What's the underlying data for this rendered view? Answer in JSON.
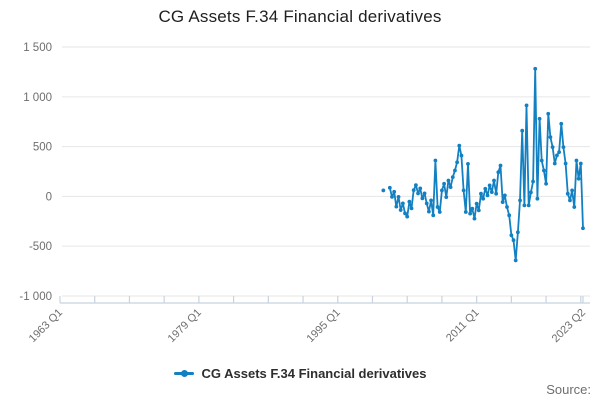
{
  "title": "CG Assets F.34 Financial derivatives",
  "legend": {
    "label": "CG Assets F.34 Financial derivatives"
  },
  "source_label": "Source:",
  "chart_data": {
    "type": "line",
    "title": "CG Assets F.34 Financial derivatives",
    "series_name": "CG Assets F.34 Financial derivatives",
    "series_color": "#1380c2",
    "grid_color": "#e6e6e6",
    "axis_color": "#c8d3df",
    "label_color": "#6e6e6e",
    "xlabel": "",
    "ylabel": "",
    "x_axis": {
      "start_quarter": "1963 Q1",
      "end_quarter": "2023 Q2",
      "labels": [
        "1963 Q1",
        "1979 Q1",
        "1995 Q1",
        "2011 Q1",
        "2023 Q2"
      ],
      "label_quarter_indices": [
        0,
        64,
        128,
        192,
        241
      ],
      "minor_tick_step_quarters": 16
    },
    "y_axis": {
      "ticks": [
        -1000,
        -500,
        0,
        500,
        1000,
        1500
      ],
      "tick_labels": [
        "-1 000",
        "-500",
        "0",
        "500",
        "1 000",
        "1 500"
      ],
      "ylim": [
        -1000,
        1500
      ],
      "grid": true
    },
    "points": [
      {
        "q": "2000 Q2",
        "v": 60
      },
      {
        "q": "2001 Q1",
        "v": 87
      },
      {
        "q": "2001 Q2",
        "v": -5
      },
      {
        "q": "2001 Q3",
        "v": 47
      },
      {
        "q": "2001 Q4",
        "v": -103
      },
      {
        "q": "2002 Q1",
        "v": -5
      },
      {
        "q": "2002 Q2",
        "v": -137
      },
      {
        "q": "2002 Q3",
        "v": -70
      },
      {
        "q": "2002 Q4",
        "v": -170
      },
      {
        "q": "2003 Q1",
        "v": -203
      },
      {
        "q": "2003 Q2",
        "v": -53
      },
      {
        "q": "2003 Q3",
        "v": -120
      },
      {
        "q": "2003 Q4",
        "v": 63
      },
      {
        "q": "2004 Q1",
        "v": 113
      },
      {
        "q": "2004 Q2",
        "v": 30
      },
      {
        "q": "2004 Q3",
        "v": 80
      },
      {
        "q": "2004 Q4",
        "v": -20
      },
      {
        "q": "2005 Q1",
        "v": 30
      },
      {
        "q": "2005 Q2",
        "v": -70
      },
      {
        "q": "2005 Q3",
        "v": -153
      },
      {
        "q": "2005 Q4",
        "v": -40
      },
      {
        "q": "2006 Q1",
        "v": -190
      },
      {
        "q": "2006 Q2",
        "v": 360
      },
      {
        "q": "2006 Q3",
        "v": -107
      },
      {
        "q": "2006 Q4",
        "v": -157
      },
      {
        "q": "2007 Q1",
        "v": 60
      },
      {
        "q": "2007 Q2",
        "v": 127
      },
      {
        "q": "2007 Q3",
        "v": -7
      },
      {
        "q": "2007 Q4",
        "v": 160
      },
      {
        "q": "2008 Q1",
        "v": 93
      },
      {
        "q": "2008 Q2",
        "v": 193
      },
      {
        "q": "2008 Q3",
        "v": 260
      },
      {
        "q": "2008 Q4",
        "v": 343
      },
      {
        "q": "2009 Q1",
        "v": 510
      },
      {
        "q": "2009 Q2",
        "v": 410
      },
      {
        "q": "2009 Q3",
        "v": 60
      },
      {
        "q": "2009 Q4",
        "v": -157
      },
      {
        "q": "2010 Q1",
        "v": 327
      },
      {
        "q": "2010 Q2",
        "v": -173
      },
      {
        "q": "2010 Q3",
        "v": -123
      },
      {
        "q": "2010 Q4",
        "v": -223
      },
      {
        "q": "2011 Q1",
        "v": -73
      },
      {
        "q": "2011 Q2",
        "v": -140
      },
      {
        "q": "2011 Q3",
        "v": 27
      },
      {
        "q": "2011 Q4",
        "v": -23
      },
      {
        "q": "2012 Q1",
        "v": 77
      },
      {
        "q": "2012 Q2",
        "v": 10
      },
      {
        "q": "2012 Q3",
        "v": 110
      },
      {
        "q": "2012 Q4",
        "v": 43
      },
      {
        "q": "2013 Q1",
        "v": 160
      },
      {
        "q": "2013 Q2",
        "v": 27
      },
      {
        "q": "2013 Q3",
        "v": 243
      },
      {
        "q": "2013 Q4",
        "v": 310
      },
      {
        "q": "2014 Q1",
        "v": -57
      },
      {
        "q": "2014 Q2",
        "v": 10
      },
      {
        "q": "2014 Q3",
        "v": -107
      },
      {
        "q": "2014 Q4",
        "v": -190
      },
      {
        "q": "2015 Q1",
        "v": -390
      },
      {
        "q": "2015 Q2",
        "v": -440
      },
      {
        "q": "2015 Q3",
        "v": -643
      },
      {
        "q": "2015 Q4",
        "v": -360
      },
      {
        "q": "2016 Q1",
        "v": -40
      },
      {
        "q": "2016 Q2",
        "v": 660
      },
      {
        "q": "2016 Q3",
        "v": -90
      },
      {
        "q": "2016 Q4",
        "v": 914
      },
      {
        "q": "2017 Q1",
        "v": -90
      },
      {
        "q": "2017 Q2",
        "v": 40
      },
      {
        "q": "2017 Q3",
        "v": 150
      },
      {
        "q": "2017 Q4",
        "v": 1282
      },
      {
        "q": "2018 Q1",
        "v": -23
      },
      {
        "q": "2018 Q2",
        "v": 780
      },
      {
        "q": "2018 Q3",
        "v": 360
      },
      {
        "q": "2018 Q4",
        "v": 260
      },
      {
        "q": "2019 Q1",
        "v": 127
      },
      {
        "q": "2019 Q2",
        "v": 830
      },
      {
        "q": "2019 Q3",
        "v": 595
      },
      {
        "q": "2019 Q4",
        "v": 495
      },
      {
        "q": "2020 Q1",
        "v": 330
      },
      {
        "q": "2020 Q2",
        "v": 412
      },
      {
        "q": "2020 Q3",
        "v": 445
      },
      {
        "q": "2020 Q4",
        "v": 730
      },
      {
        "q": "2021 Q1",
        "v": 495
      },
      {
        "q": "2021 Q2",
        "v": 330
      },
      {
        "q": "2021 Q3",
        "v": 27
      },
      {
        "q": "2021 Q4",
        "v": -40
      },
      {
        "q": "2022 Q1",
        "v": 60
      },
      {
        "q": "2022 Q2",
        "v": -107
      },
      {
        "q": "2022 Q3",
        "v": 360
      },
      {
        "q": "2022 Q4",
        "v": 177
      },
      {
        "q": "2023 Q1",
        "v": 330
      },
      {
        "q": "2023 Q2",
        "v": -320
      }
    ]
  }
}
